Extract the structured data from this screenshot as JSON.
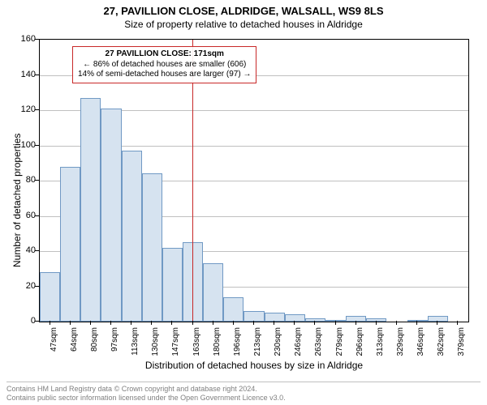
{
  "title": "27, PAVILLION CLOSE, ALDRIDGE, WALSALL, WS9 8LS",
  "subtitle": "Size of property relative to detached houses in Aldridge",
  "yaxis_title": "Number of detached properties",
  "xaxis_title": "Distribution of detached houses by size in Aldridge",
  "footer_line1": "Contains HM Land Registry data © Crown copyright and database right 2024.",
  "footer_line2": "Contains public sector information licensed under the Open Government Licence v3.0.",
  "annot": {
    "line1": "27 PAVILLION CLOSE: 171sqm",
    "line2": "← 86% of detached houses are smaller (606)",
    "line3": "14% of semi-detached houses are larger (97) →"
  },
  "chart": {
    "type": "histogram",
    "ylim": [
      0,
      160
    ],
    "ytick_step": 20,
    "x_start": 47,
    "x_step": 16.6,
    "x_count": 21,
    "x_unit": "sqm",
    "marker_x": 171,
    "bar_fill": "#d6e3f0",
    "bar_stroke": "#7099c4",
    "grid_color": "#c0c0c0",
    "marker_color": "#c82828",
    "background_color": "#ffffff",
    "categories": [
      "47sqm",
      "64sqm",
      "80sqm",
      "97sqm",
      "113sqm",
      "130sqm",
      "147sqm",
      "163sqm",
      "180sqm",
      "196sqm",
      "213sqm",
      "230sqm",
      "246sqm",
      "263sqm",
      "279sqm",
      "296sqm",
      "313sqm",
      "329sqm",
      "346sqm",
      "362sqm",
      "379sqm"
    ],
    "values": [
      28,
      88,
      127,
      121,
      97,
      84,
      42,
      45,
      33,
      14,
      6,
      5,
      4,
      2,
      1,
      3,
      2,
      0,
      1,
      3,
      0
    ]
  }
}
